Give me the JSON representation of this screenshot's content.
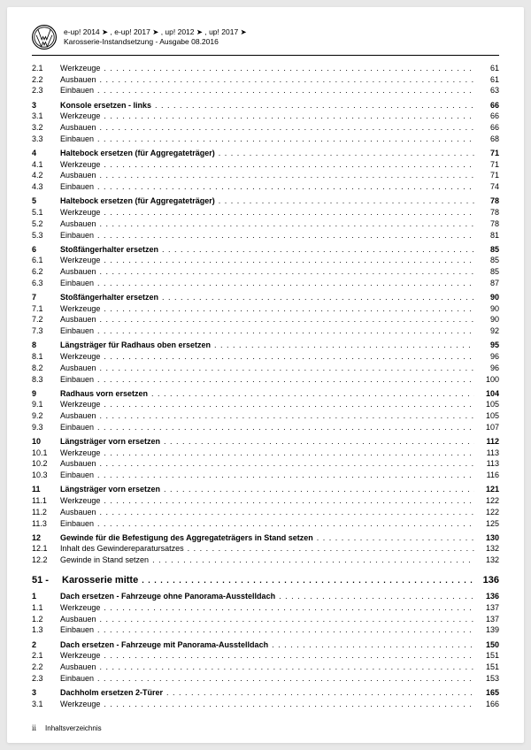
{
  "header": {
    "models": "e-up! 2014 ➤ , e-up! 2017 ➤ , up! 2012 ➤ , up! 2017 ➤",
    "subtitle": "Karosserie-Instandsetzung - Ausgabe 08.2016"
  },
  "chapter": {
    "num": "51 -",
    "title": "Karosserie mitte",
    "page": "136"
  },
  "toc": [
    {
      "n": "2.1",
      "t": "Werkzeuge",
      "p": "61"
    },
    {
      "n": "2.2",
      "t": "Ausbauen",
      "p": "61"
    },
    {
      "n": "2.3",
      "t": "Einbauen",
      "p": "63"
    },
    {
      "n": "3",
      "t": "Konsole ersetzen - links",
      "p": "66",
      "b": true,
      "gap": true
    },
    {
      "n": "3.1",
      "t": "Werkzeuge",
      "p": "66"
    },
    {
      "n": "3.2",
      "t": "Ausbauen",
      "p": "66"
    },
    {
      "n": "3.3",
      "t": "Einbauen",
      "p": "68"
    },
    {
      "n": "4",
      "t": "Haltebock ersetzen (für Aggregateträger)",
      "p": "71",
      "b": true,
      "gap": true
    },
    {
      "n": "4.1",
      "t": "Werkzeuge",
      "p": "71"
    },
    {
      "n": "4.2",
      "t": "Ausbauen",
      "p": "71"
    },
    {
      "n": "4.3",
      "t": "Einbauen",
      "p": "74"
    },
    {
      "n": "5",
      "t": "Haltebock ersetzen (für Aggregateträger)",
      "p": "78",
      "b": true,
      "gap": true
    },
    {
      "n": "5.1",
      "t": "Werkzeuge",
      "p": "78"
    },
    {
      "n": "5.2",
      "t": "Ausbauen",
      "p": "78"
    },
    {
      "n": "5.3",
      "t": "Einbauen",
      "p": "81"
    },
    {
      "n": "6",
      "t": "Stoßfängerhalter ersetzen",
      "p": "85",
      "b": true,
      "gap": true
    },
    {
      "n": "6.1",
      "t": "Werkzeuge",
      "p": "85"
    },
    {
      "n": "6.2",
      "t": "Ausbauen",
      "p": "85"
    },
    {
      "n": "6.3",
      "t": "Einbauen",
      "p": "87"
    },
    {
      "n": "7",
      "t": "Stoßfängerhalter ersetzen",
      "p": "90",
      "b": true,
      "gap": true
    },
    {
      "n": "7.1",
      "t": "Werkzeuge",
      "p": "90"
    },
    {
      "n": "7.2",
      "t": "Ausbauen",
      "p": "90"
    },
    {
      "n": "7.3",
      "t": "Einbauen",
      "p": "92"
    },
    {
      "n": "8",
      "t": "Längsträger für Radhaus oben ersetzen",
      "p": "95",
      "b": true,
      "gap": true
    },
    {
      "n": "8.1",
      "t": "Werkzeuge",
      "p": "96"
    },
    {
      "n": "8.2",
      "t": "Ausbauen",
      "p": "96"
    },
    {
      "n": "8.3",
      "t": "Einbauen",
      "p": "100"
    },
    {
      "n": "9",
      "t": "Radhaus vorn ersetzen",
      "p": "104",
      "b": true,
      "gap": true
    },
    {
      "n": "9.1",
      "t": "Werkzeuge",
      "p": "105"
    },
    {
      "n": "9.2",
      "t": "Ausbauen",
      "p": "105"
    },
    {
      "n": "9.3",
      "t": "Einbauen",
      "p": "107"
    },
    {
      "n": "10",
      "t": "Längsträger vorn ersetzen",
      "p": "112",
      "b": true,
      "gap": true
    },
    {
      "n": "10.1",
      "t": "Werkzeuge",
      "p": "113"
    },
    {
      "n": "10.2",
      "t": "Ausbauen",
      "p": "113"
    },
    {
      "n": "10.3",
      "t": "Einbauen",
      "p": "116"
    },
    {
      "n": "11",
      "t": "Längsträger vorn ersetzen",
      "p": "121",
      "b": true,
      "gap": true
    },
    {
      "n": "11.1",
      "t": "Werkzeuge",
      "p": "122"
    },
    {
      "n": "11.2",
      "t": "Ausbauen",
      "p": "122"
    },
    {
      "n": "11.3",
      "t": "Einbauen",
      "p": "125"
    },
    {
      "n": "12",
      "t": "Gewinde für die Befestigung des Aggregateträgers in Stand setzen",
      "p": "130",
      "b": true,
      "gap": true
    },
    {
      "n": "12.1",
      "t": "Inhalt des Gewindereparatursatzes",
      "p": "132"
    },
    {
      "n": "12.2",
      "t": "Gewinde in Stand setzen",
      "p": "132"
    }
  ],
  "toc2": [
    {
      "n": "1",
      "t": "Dach ersetzen - Fahrzeuge ohne Panorama-Ausstelldach",
      "p": "136",
      "b": true
    },
    {
      "n": "1.1",
      "t": "Werkzeuge",
      "p": "137"
    },
    {
      "n": "1.2",
      "t": "Ausbauen",
      "p": "137"
    },
    {
      "n": "1.3",
      "t": "Einbauen",
      "p": "139"
    },
    {
      "n": "2",
      "t": "Dach ersetzen - Fahrzeuge mit Panorama-Ausstelldach",
      "p": "150",
      "b": true,
      "gap": true
    },
    {
      "n": "2.1",
      "t": "Werkzeuge",
      "p": "151"
    },
    {
      "n": "2.2",
      "t": "Ausbauen",
      "p": "151"
    },
    {
      "n": "2.3",
      "t": "Einbauen",
      "p": "153"
    },
    {
      "n": "3",
      "t": "Dachholm ersetzen 2-Türer",
      "p": "165",
      "b": true,
      "gap": true
    },
    {
      "n": "3.1",
      "t": "Werkzeuge",
      "p": "166"
    }
  ],
  "footer": {
    "page": "ii",
    "label": "Inhaltsverzeichnis"
  }
}
